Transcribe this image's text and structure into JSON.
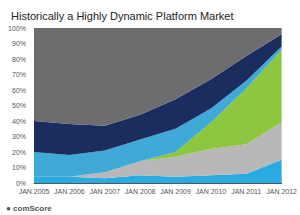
{
  "chart_data": {
    "type": "area",
    "title": "Historically a Highly Dynamic Platform Market",
    "categories": [
      "JAN 2005",
      "JAN 2006",
      "JAN 2007",
      "JAN 2008",
      "JAN 2009",
      "JAN 2010",
      "JAN 2011",
      "JAN 2012"
    ],
    "series": [
      {
        "color": "#29abe2",
        "values": [
          4,
          4,
          3,
          5,
          4,
          5,
          6,
          15
        ]
      },
      {
        "color": "#b8b8b8",
        "values": [
          0,
          0,
          4,
          9,
          13,
          17,
          19,
          24
        ]
      },
      {
        "color": "#8dc63f",
        "values": [
          0,
          0,
          0,
          0,
          3,
          17,
          36,
          47
        ]
      },
      {
        "color": "#3fa9d8",
        "values": [
          16,
          14,
          14,
          14,
          15,
          9,
          5,
          2
        ]
      },
      {
        "color": "#1b2d5e",
        "values": [
          20,
          20,
          16,
          16,
          19,
          19,
          16,
          8
        ]
      },
      {
        "color": "#6d6d6d",
        "values": [
          60,
          62,
          63,
          56,
          46,
          33,
          18,
          4
        ]
      }
    ],
    "stacked": true,
    "ylim": [
      0,
      100
    ],
    "yticks": [
      {
        "value": 0,
        "label": "0%"
      },
      {
        "value": 10,
        "label": "10%"
      },
      {
        "value": 20,
        "label": "20%"
      },
      {
        "value": 30,
        "label": "30%"
      },
      {
        "value": 40,
        "label": "40%"
      },
      {
        "value": 50,
        "label": "50%"
      },
      {
        "value": 60,
        "label": "60%"
      },
      {
        "value": 70,
        "label": "70%"
      },
      {
        "value": 80,
        "label": "80%"
      },
      {
        "value": 90,
        "label": "90%"
      },
      {
        "value": 100,
        "label": "100%"
      }
    ],
    "grid": true,
    "annotations": [
      "● comScore"
    ]
  }
}
